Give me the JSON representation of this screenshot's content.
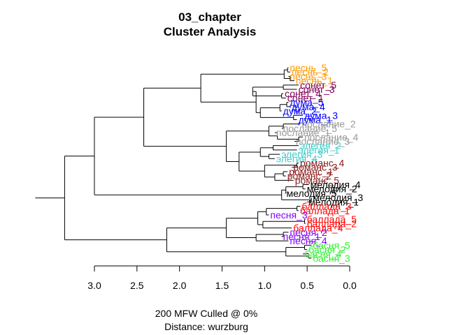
{
  "title": {
    "line1": "03_chapter",
    "line2": "Cluster Analysis"
  },
  "footer": {
    "line1": "200 MFW  Culled @ 0%",
    "line2": "Distance: wurzburg"
  },
  "colors": {
    "песнь": "#ff9900",
    "сонет": "#800055",
    "дума": "#0000ff",
    "послание": "#999999",
    "элегия": "#40cccc",
    "романс": "#8b1a1a",
    "мелодия": "#000000",
    "баллада": "#ff0000",
    "песня": "#8000ff",
    "басня": "#33ee33"
  },
  "chart_data": {
    "type": "dendrogram",
    "orientation": "horizontal",
    "xlim": [
      3.0,
      0.0
    ],
    "ticks": [
      "3.0",
      "2.5",
      "2.0",
      "1.5",
      "1.0",
      "0.5",
      "0.0"
    ],
    "tick_values": [
      3.0,
      2.5,
      2.0,
      1.5,
      1.0,
      0.5,
      0.0
    ],
    "leaves": [
      {
        "label": "песнь_5",
        "group": "песнь",
        "height": 0.72
      },
      {
        "label": "песнь_2",
        "group": "песнь",
        "height": 0.7
      },
      {
        "label": "песнь_3",
        "group": "песнь",
        "height": 0.72
      },
      {
        "label": "песнь_1",
        "group": "песнь",
        "height": 0.65
      },
      {
        "label": "сонет_5",
        "group": "сонет",
        "height": 0.6
      },
      {
        "label": "сонет_3",
        "group": "сонет",
        "height": 0.62
      },
      {
        "label": "сонет_4",
        "group": "сонет",
        "height": 0.78
      },
      {
        "label": "сонет_1",
        "group": "сонет",
        "height": 0.75
      },
      {
        "label": "дума_5",
        "group": "дума",
        "height": 0.72
      },
      {
        "label": "дума_4",
        "group": "дума",
        "height": 0.7
      },
      {
        "label": "дума_2",
        "group": "дума",
        "height": 0.8
      },
      {
        "label": "дума_3",
        "group": "дума",
        "height": 0.55
      },
      {
        "label": "дума_1",
        "group": "дума",
        "height": 0.62
      },
      {
        "label": "послание_2",
        "group": "послание",
        "height": 0.58
      },
      {
        "label": "послание_5",
        "group": "послание",
        "height": 0.8
      },
      {
        "label": "послание_1",
        "group": "послание",
        "height": 0.88
      },
      {
        "label": "послание_4",
        "group": "послание",
        "height": 0.55
      },
      {
        "label": "послание_3",
        "group": "послание",
        "height": 0.65
      },
      {
        "label": "элегия_2",
        "group": "элегия",
        "height": 0.6
      },
      {
        "label": "элегия_1",
        "group": "элегия",
        "height": 0.62
      },
      {
        "label": "элегия_3",
        "group": "элегия",
        "height": 0.82
      },
      {
        "label": "элегия_4",
        "group": "элегия",
        "height": 0.88
      },
      {
        "label": "романс_4",
        "group": "романс",
        "height": 0.6
      },
      {
        "label": "романс_3",
        "group": "романс",
        "height": 0.68
      },
      {
        "label": "романс_1",
        "group": "романс",
        "height": 0.73
      },
      {
        "label": "романс_2",
        "group": "романс",
        "height": 0.75
      },
      {
        "label": "романс_5",
        "group": "романс",
        "height": 0.66
      },
      {
        "label": "мелодия_4",
        "group": "мелодия",
        "height": 0.48
      },
      {
        "label": "мелодия_2",
        "group": "мелодия",
        "height": 0.52
      },
      {
        "label": "мелодия_5",
        "group": "мелодия",
        "height": 0.76
      },
      {
        "label": "мелодия_3",
        "group": "мелодия",
        "height": 0.45
      },
      {
        "label": "мелодия_1",
        "group": "мелодия",
        "height": 0.5
      },
      {
        "label": "баллада_3",
        "group": "баллада",
        "height": 0.58
      },
      {
        "label": "баллада_1",
        "group": "баллада",
        "height": 0.6
      },
      {
        "label": "песня_3",
        "group": "песня",
        "height": 0.95
      },
      {
        "label": "баллада_5",
        "group": "баллада",
        "height": 0.52
      },
      {
        "label": "баллада_2",
        "group": "баллада",
        "height": 0.52
      },
      {
        "label": "баллада_4",
        "group": "баллада",
        "height": 0.68
      },
      {
        "label": "песня_2",
        "group": "песня",
        "height": 0.72
      },
      {
        "label": "песня_1",
        "group": "песня",
        "height": 0.8
      },
      {
        "label": "песня_4",
        "group": "песня",
        "height": 0.72
      },
      {
        "label": "басня_5",
        "group": "басня",
        "height": 0.45
      },
      {
        "label": "басня_2",
        "group": "басня",
        "height": 0.5
      },
      {
        "label": "басня_4",
        "group": "басня",
        "height": 0.55
      },
      {
        "label": "басня_3",
        "group": "басня",
        "height": 0.45
      }
    ],
    "tree": [
      [
        [
          [
            [
              [
                "песнь_5",
                "песнь_2"
              ],
              [
                "песнь_3",
                "песнь_1"
              ]
            ],
            [
              [
                [
                  "сонет_5",
                  "сонет_3"
                ],
                [
                  "сонет_4",
                  "сонет_1"
                ]
              ],
              [
                [
                  [
                    "дума_5",
                    "дума_4"
                  ],
                  "дума_2"
                ],
                [
                  "дума_3",
                  "дума_1"
                ]
              ]
            ],
            1.1
          ],
          1.75
        ],
        [
          [
            [
              [
                "послание_2",
                "послание_5"
              ],
              [
                "послание_1",
                [
                  "послание_4",
                  "послание_3"
                ]
              ]
            ],
            [
              [
                [
                  "элегия_2",
                  "элегия_1"
                ],
                [
                  "элегия_3",
                  "элегия_4"
                ]
              ],
              [
                [
                  "романс_4",
                  "романс_3"
                ],
                [
                  [
                    "романс_1",
                    "романс_2"
                  ],
                  "романс_5"
                ]
              ]
            ]
          ],
          [
            [
              [
                "мелодия_4",
                "мелодия_2"
              ],
              "мелодия_5"
            ],
            [
              "мелодия_3",
              "мелодия_1"
            ]
          ]
        ]
      ],
      [
        [
          [
            [
              [
                "баллада_3",
                "баллада_1"
              ],
              "песня_3"
            ],
            [
              [
                "баллада_5",
                "баллада_2"
              ],
              "баллада_4"
            ]
          ],
          [
            [
              "песня_2",
              "песня_1"
            ],
            "песня_4"
          ]
        ],
        [
          [
            "басня_5",
            "басня_2"
          ],
          [
            "басня_4",
            "басня_3"
          ]
        ]
      ]
    ],
    "merge_heights": {
      "песнь": [
        0.73,
        0.7,
        0.77,
        1.25
      ],
      "сонет": [
        0.63,
        0.8,
        1.14
      ],
      "дума": [
        0.74,
        0.82,
        0.66,
        1.05
      ],
      "upper_lyric": [
        1.35,
        1.75,
        2.42
      ],
      "mid": [
        1.0,
        0.9,
        0.6,
        1.05,
        1.6,
        0.62,
        0.88,
        0.95,
        1.3,
        1.62,
        0.78,
        0.95,
        1.45,
        0.45,
        0.78,
        0.85,
        1.05,
        1.45,
        1.73
      ],
      "meloдия": [
        0.75,
        0.55,
        0.8,
        2.02
      ],
      "root_upper": [
        3.0
      ],
      "lower": [
        1.02,
        1.08,
        0.78,
        0.98,
        1.45,
        1.1,
        0.62,
        1.28,
        1.62,
        0.53,
        0.48,
        0.75,
        2.15,
        3.35
      ]
    }
  }
}
